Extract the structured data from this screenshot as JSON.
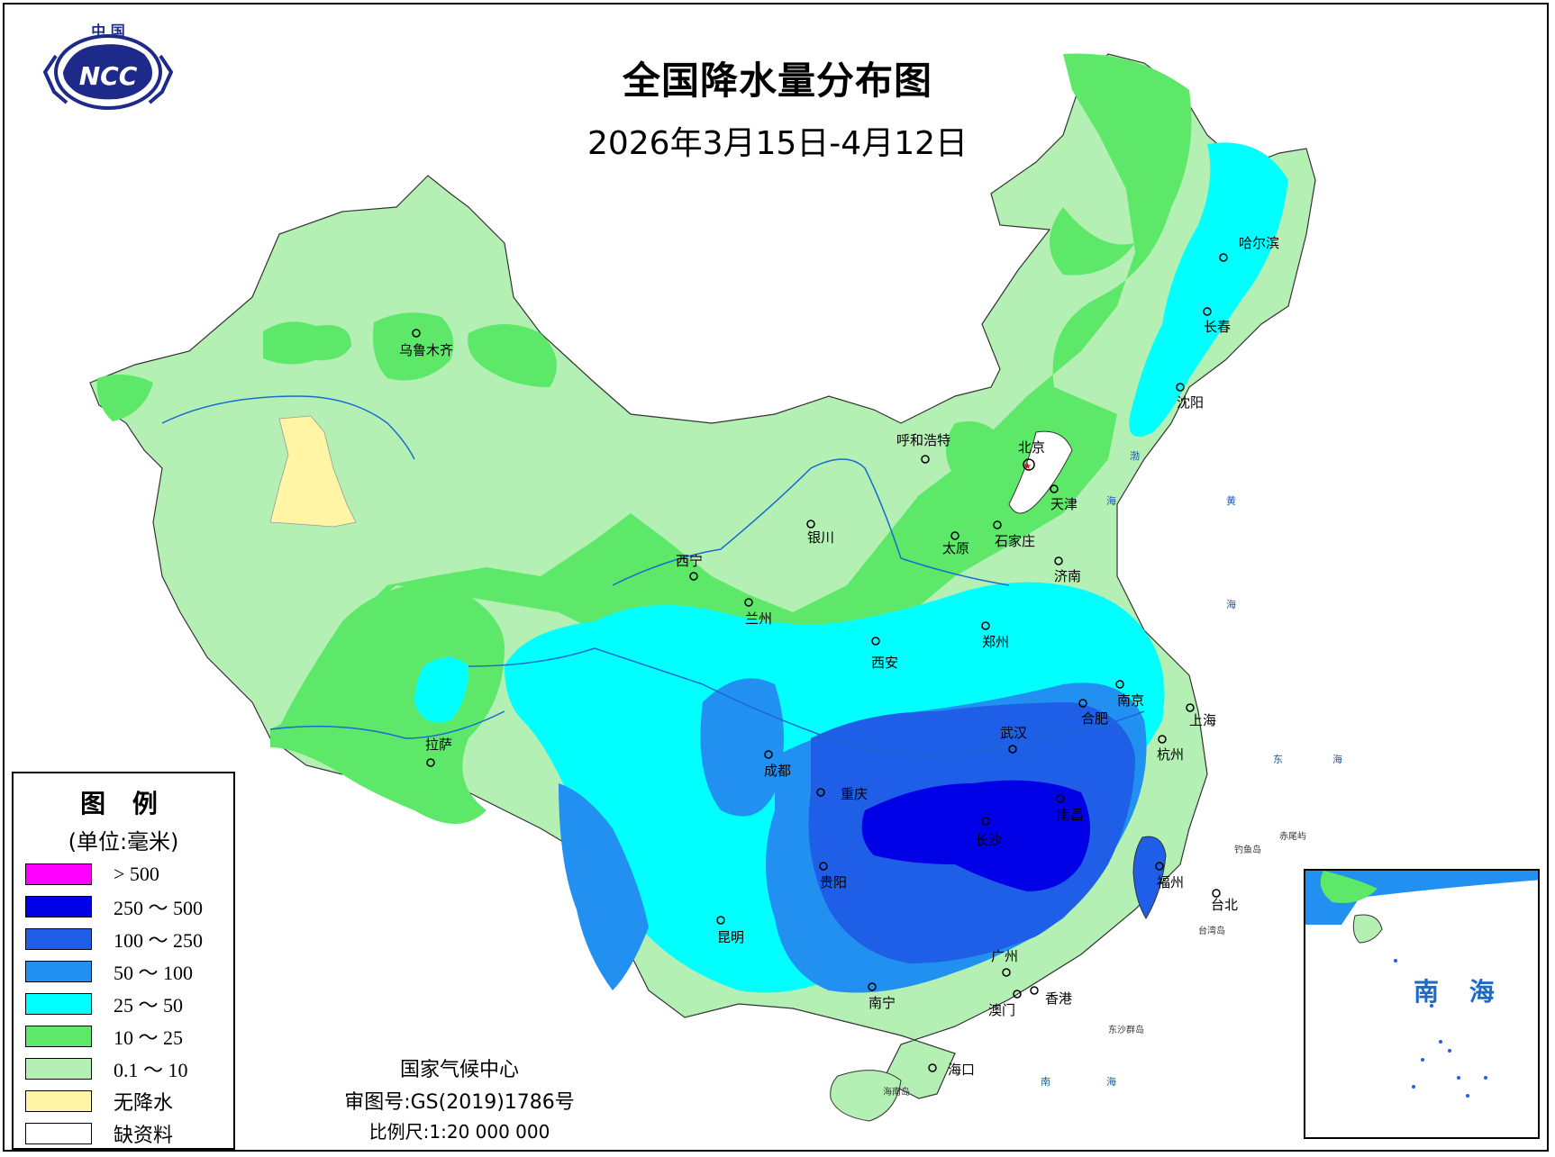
{
  "title": "全国降水量分布图",
  "date_range": "2026年3月15日-4月12日",
  "logo": {
    "text": "中 国",
    "acronym": "NCC"
  },
  "legend": {
    "title": "图 例",
    "unit": "(单位:毫米)",
    "items": [
      {
        "label": "> 500",
        "color": "#ff00ff"
      },
      {
        "label": "250 ～ 500",
        "color": "#0000e6"
      },
      {
        "label": "100 ～ 250",
        "color": "#1f5ee6"
      },
      {
        "label": "50 ～ 100",
        "color": "#2190f0"
      },
      {
        "label": "25 ～ 50",
        "color": "#00ffff"
      },
      {
        "label": "10 ～ 25",
        "color": "#5ee86a"
      },
      {
        "label": "0.1 ～ 10",
        "color": "#b4f0b4"
      },
      {
        "label": "无降水",
        "color": "#fff5a5"
      },
      {
        "label": "缺资料",
        "color": "#ffffff"
      }
    ]
  },
  "cities": {
    "urumqi": "乌鲁木齐",
    "lhasa": "拉萨",
    "xining": "西宁",
    "lanzhou": "兰州",
    "yinchuan": "银川",
    "hohhot": "呼和浩特",
    "beijing": "北京",
    "tianjin": "天津",
    "taiyuan": "太原",
    "shijiazhuang": "石家庄",
    "jinan": "济南",
    "zhengzhou": "郑州",
    "xian": "西安",
    "chengdu": "成都",
    "chongqing": "重庆",
    "wuhan": "武汉",
    "hefei": "合肥",
    "nanjing": "南京",
    "shanghai": "上海",
    "hangzhou": "杭州",
    "nanchang": "南昌",
    "changsha": "长沙",
    "guiyang": "贵阳",
    "kunming": "昆明",
    "nanning": "南宁",
    "guangzhou": "广州",
    "macao": "澳门",
    "hongkong": "香港",
    "fuzhou": "福州",
    "taipei": "台北",
    "haikou": "海口",
    "harbin": "哈尔滨",
    "changchun": "长春",
    "shenyang": "沈阳"
  },
  "places": {
    "taiwan_island": "台湾岛",
    "hainan_island": "海南岛",
    "dongsha": "东沙群岛",
    "diaoyu": "钓鱼岛",
    "chiwei": "赤尾屿"
  },
  "seas": {
    "bo": "渤",
    "bo2": "海",
    "yellow": "黄",
    "yellow2": "海",
    "east": "东",
    "east2": "海",
    "south": "南",
    "south2": "海"
  },
  "inset_label": "南 海",
  "footer": {
    "agency": "国家气候中心",
    "review_no": "审图号:GS(2019)1786号",
    "scale": "比例尺:1:20 000 000"
  }
}
